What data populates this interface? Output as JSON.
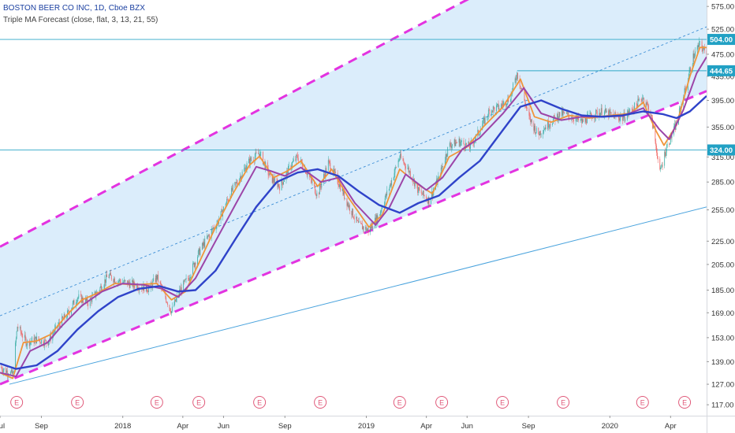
{
  "header": {
    "symbol_line": "BOSTON BEER CO INC, 1D, Cboe BZX",
    "study_line": "Triple MA Forecast (close, flat, 3, 13, 21, 55)"
  },
  "colors": {
    "background": "#ffffff",
    "channel_fill": "#d7ebfb",
    "channel_edge": "#e333e0",
    "midline": "#3c8ed6",
    "trendline": "#4aa3dd",
    "hline": "#2fa7c7",
    "ma_fast": "#f0953a",
    "ma_mid": "#9c45a8",
    "ma_slow": "#2f43c9",
    "candle_up": "#26a69a",
    "candle_down": "#ef5350",
    "event_marker": "#e05a7a",
    "axis_text": "#333333",
    "price_tag": "#22a1c4"
  },
  "chart_data": {
    "type": "line",
    "title": "BOSTON BEER CO INC, 1D, Cboe BZX",
    "subtitle": "Triple MA Forecast (close, flat, 3, 13, 21, 55)",
    "y_axis": {
      "scale": "log",
      "range": [
        112,
        590
      ],
      "ticks": [
        117.0,
        127.0,
        139.0,
        153.0,
        169.0,
        185.0,
        205.0,
        225.0,
        255.0,
        285.0,
        315.0,
        355.0,
        395.0,
        435.0,
        475.0,
        525.0,
        575.0
      ]
    },
    "x_axis": {
      "range": [
        "2017-07-01",
        "2020-05-25"
      ],
      "tick_labels": [
        {
          "date": "2017-07-01",
          "label": "Jul"
        },
        {
          "date": "2017-09-01",
          "label": "Sep"
        },
        {
          "date": "2018-01-01",
          "label": "2018"
        },
        {
          "date": "2018-04-01",
          "label": "Apr"
        },
        {
          "date": "2018-06-01",
          "label": "Jun"
        },
        {
          "date": "2018-09-01",
          "label": "Sep"
        },
        {
          "date": "2019-01-01",
          "label": "2019"
        },
        {
          "date": "2019-04-01",
          "label": "Apr"
        },
        {
          "date": "2019-06-01",
          "label": "Jun"
        },
        {
          "date": "2019-09-01",
          "label": "Sep"
        },
        {
          "date": "2020-01-01",
          "label": "2020"
        },
        {
          "date": "2020-04-01",
          "label": "Apr"
        }
      ]
    },
    "price_tags": [
      {
        "label": "504.00",
        "value": 504
      },
      {
        "label": "444.65",
        "value": 444.65
      },
      {
        "label": "324.00",
        "value": 324
      }
    ],
    "horizontal_lines": [
      504,
      324
    ],
    "partial_line": {
      "from": "2019-08-15",
      "to": "2020-05-25",
      "value": 444.65
    },
    "channel": {
      "upper": [
        {
          "x": "2017-07-01",
          "y": 220
        },
        {
          "x": "2020-05-25",
          "y": 980
        }
      ],
      "lower": [
        {
          "x": "2017-07-01",
          "y": 127
        },
        {
          "x": "2020-05-25",
          "y": 410
        }
      ],
      "mid": [
        {
          "x": "2017-07-01",
          "y": 167
        },
        {
          "x": "2020-05-25",
          "y": 530
        }
      ]
    },
    "trendline": [
      {
        "x": "2017-07-15",
        "y": 127
      },
      {
        "x": "2020-05-25",
        "y": 258
      }
    ],
    "event_markers": {
      "label": "E",
      "dates": [
        "2017-07-26",
        "2017-10-25",
        "2018-02-21",
        "2018-04-25",
        "2018-07-25",
        "2018-10-24",
        "2019-02-20",
        "2019-04-24",
        "2019-07-24",
        "2019-10-23",
        "2020-02-19",
        "2020-04-22"
      ]
    },
    "series": [
      {
        "key": "price",
        "points": [
          [
            "2017-07-01",
            136
          ],
          [
            "2017-07-20",
            132
          ],
          [
            "2017-07-27",
            160
          ],
          [
            "2017-08-10",
            150
          ],
          [
            "2017-08-25",
            152
          ],
          [
            "2017-09-10",
            150
          ],
          [
            "2017-09-25",
            160
          ],
          [
            "2017-10-10",
            168
          ],
          [
            "2017-10-25",
            180
          ],
          [
            "2017-11-10",
            176
          ],
          [
            "2017-11-25",
            184
          ],
          [
            "2017-12-10",
            196
          ],
          [
            "2017-12-25",
            192
          ],
          [
            "2018-01-10",
            190
          ],
          [
            "2018-01-25",
            188
          ],
          [
            "2018-02-10",
            186
          ],
          [
            "2018-02-21",
            195
          ],
          [
            "2018-03-01",
            185
          ],
          [
            "2018-03-15",
            170
          ],
          [
            "2018-03-28",
            185
          ],
          [
            "2018-04-10",
            195
          ],
          [
            "2018-04-25",
            215
          ],
          [
            "2018-05-10",
            230
          ],
          [
            "2018-05-25",
            245
          ],
          [
            "2018-06-10",
            270
          ],
          [
            "2018-06-25",
            290
          ],
          [
            "2018-07-10",
            310
          ],
          [
            "2018-07-25",
            320
          ],
          [
            "2018-08-10",
            290
          ],
          [
            "2018-08-25",
            280
          ],
          [
            "2018-09-10",
            305
          ],
          [
            "2018-09-20",
            315
          ],
          [
            "2018-10-05",
            295
          ],
          [
            "2018-10-20",
            270
          ],
          [
            "2018-11-05",
            308
          ],
          [
            "2018-11-20",
            285
          ],
          [
            "2018-12-05",
            260
          ],
          [
            "2018-12-20",
            240
          ],
          [
            "2019-01-05",
            235
          ],
          [
            "2019-01-20",
            250
          ],
          [
            "2019-02-05",
            280
          ],
          [
            "2019-02-20",
            315
          ],
          [
            "2019-03-05",
            300
          ],
          [
            "2019-03-20",
            275
          ],
          [
            "2019-04-05",
            265
          ],
          [
            "2019-04-20",
            290
          ],
          [
            "2019-05-05",
            330
          ],
          [
            "2019-05-20",
            335
          ],
          [
            "2019-06-05",
            328
          ],
          [
            "2019-06-20",
            350
          ],
          [
            "2019-07-05",
            380
          ],
          [
            "2019-07-20",
            385
          ],
          [
            "2019-08-05",
            400
          ],
          [
            "2019-08-15",
            440
          ],
          [
            "2019-09-01",
            370
          ],
          [
            "2019-09-15",
            345
          ],
          [
            "2019-10-01",
            360
          ],
          [
            "2019-10-20",
            375
          ],
          [
            "2019-11-05",
            370
          ],
          [
            "2019-11-20",
            362
          ],
          [
            "2019-12-05",
            372
          ],
          [
            "2019-12-20",
            378
          ],
          [
            "2020-01-05",
            372
          ],
          [
            "2020-01-20",
            368
          ],
          [
            "2020-02-05",
            382
          ],
          [
            "2020-02-19",
            400
          ],
          [
            "2020-03-01",
            380
          ],
          [
            "2020-03-10",
            330
          ],
          [
            "2020-03-16",
            295
          ],
          [
            "2020-03-25",
            325
          ],
          [
            "2020-04-10",
            360
          ],
          [
            "2020-04-25",
            420
          ],
          [
            "2020-05-05",
            470
          ],
          [
            "2020-05-15",
            495
          ],
          [
            "2020-05-22",
            480
          ]
        ]
      },
      {
        "key": "ma_fast",
        "points": [
          [
            "2017-07-01",
            133
          ],
          [
            "2017-07-20",
            130
          ],
          [
            "2017-08-05",
            150
          ],
          [
            "2017-08-25",
            151
          ],
          [
            "2017-09-15",
            155
          ],
          [
            "2017-10-10",
            168
          ],
          [
            "2017-11-01",
            178
          ],
          [
            "2017-11-25",
            183
          ],
          [
            "2017-12-20",
            190
          ],
          [
            "2018-01-20",
            189
          ],
          [
            "2018-02-21",
            190
          ],
          [
            "2018-03-15",
            178
          ],
          [
            "2018-04-05",
            184
          ],
          [
            "2018-04-25",
            206
          ],
          [
            "2018-05-20",
            238
          ],
          [
            "2018-06-15",
            272
          ],
          [
            "2018-07-10",
            305
          ],
          [
            "2018-07-25",
            316
          ],
          [
            "2018-08-15",
            290
          ],
          [
            "2018-09-05",
            298
          ],
          [
            "2018-09-25",
            310
          ],
          [
            "2018-10-20",
            280
          ],
          [
            "2018-11-10",
            300
          ],
          [
            "2018-12-05",
            268
          ],
          [
            "2019-01-05",
            238
          ],
          [
            "2019-01-25",
            250
          ],
          [
            "2019-02-20",
            300
          ],
          [
            "2019-03-20",
            282
          ],
          [
            "2019-04-10",
            272
          ],
          [
            "2019-05-05",
            315
          ],
          [
            "2019-06-01",
            328
          ],
          [
            "2019-06-25",
            355
          ],
          [
            "2019-07-25",
            385
          ],
          [
            "2019-08-20",
            430
          ],
          [
            "2019-09-10",
            370
          ],
          [
            "2019-10-05",
            362
          ],
          [
            "2019-11-01",
            372
          ],
          [
            "2019-12-01",
            368
          ],
          [
            "2020-01-01",
            372
          ],
          [
            "2020-02-01",
            375
          ],
          [
            "2020-02-20",
            392
          ],
          [
            "2020-03-10",
            350
          ],
          [
            "2020-03-22",
            330
          ],
          [
            "2020-04-10",
            358
          ],
          [
            "2020-04-30",
            435
          ],
          [
            "2020-05-15",
            488
          ],
          [
            "2020-05-25",
            488
          ]
        ]
      },
      {
        "key": "ma_mid",
        "points": [
          [
            "2017-07-01",
            133
          ],
          [
            "2017-07-25",
            131
          ],
          [
            "2017-08-15",
            145
          ],
          [
            "2017-09-10",
            150
          ],
          [
            "2017-10-01",
            160
          ],
          [
            "2017-11-01",
            174
          ],
          [
            "2017-12-01",
            184
          ],
          [
            "2018-01-01",
            190
          ],
          [
            "2018-02-01",
            189
          ],
          [
            "2018-03-01",
            186
          ],
          [
            "2018-03-25",
            180
          ],
          [
            "2018-04-20",
            194
          ],
          [
            "2018-05-20",
            225
          ],
          [
            "2018-06-20",
            262
          ],
          [
            "2018-07-20",
            303
          ],
          [
            "2018-08-10",
            298
          ],
          [
            "2018-09-01",
            292
          ],
          [
            "2018-09-25",
            302
          ],
          [
            "2018-10-25",
            285
          ],
          [
            "2018-11-20",
            290
          ],
          [
            "2018-12-15",
            262
          ],
          [
            "2019-01-15",
            240
          ],
          [
            "2019-02-05",
            258
          ],
          [
            "2019-03-01",
            294
          ],
          [
            "2019-04-01",
            276
          ],
          [
            "2019-04-25",
            290
          ],
          [
            "2019-05-25",
            325
          ],
          [
            "2019-06-20",
            340
          ],
          [
            "2019-07-25",
            375
          ],
          [
            "2019-08-25",
            415
          ],
          [
            "2019-09-20",
            375
          ],
          [
            "2019-10-20",
            365
          ],
          [
            "2019-11-20",
            370
          ],
          [
            "2019-12-20",
            370
          ],
          [
            "2020-01-20",
            371
          ],
          [
            "2020-02-20",
            383
          ],
          [
            "2020-03-15",
            352
          ],
          [
            "2020-03-30",
            338
          ],
          [
            "2020-04-20",
            380
          ],
          [
            "2020-05-10",
            440
          ],
          [
            "2020-05-25",
            470
          ]
        ]
      },
      {
        "key": "ma_slow",
        "points": [
          [
            "2017-07-01",
            138
          ],
          [
            "2017-07-25",
            135
          ],
          [
            "2017-08-25",
            137
          ],
          [
            "2017-09-25",
            145
          ],
          [
            "2017-10-25",
            158
          ],
          [
            "2017-11-25",
            170
          ],
          [
            "2017-12-25",
            180
          ],
          [
            "2018-01-25",
            186
          ],
          [
            "2018-02-25",
            188
          ],
          [
            "2018-03-25",
            184
          ],
          [
            "2018-04-20",
            185
          ],
          [
            "2018-05-20",
            200
          ],
          [
            "2018-06-20",
            228
          ],
          [
            "2018-07-20",
            258
          ],
          [
            "2018-08-20",
            285
          ],
          [
            "2018-09-20",
            296
          ],
          [
            "2018-10-20",
            300
          ],
          [
            "2018-11-20",
            292
          ],
          [
            "2018-12-20",
            275
          ],
          [
            "2019-01-20",
            260
          ],
          [
            "2019-02-20",
            252
          ],
          [
            "2019-03-20",
            262
          ],
          [
            "2019-04-20",
            270
          ],
          [
            "2019-05-20",
            290
          ],
          [
            "2019-06-20",
            310
          ],
          [
            "2019-07-20",
            345
          ],
          [
            "2019-08-20",
            385
          ],
          [
            "2019-09-20",
            395
          ],
          [
            "2019-10-20",
            382
          ],
          [
            "2019-11-20",
            372
          ],
          [
            "2019-12-20",
            370
          ],
          [
            "2020-01-20",
            372
          ],
          [
            "2020-02-20",
            378
          ],
          [
            "2020-03-20",
            374
          ],
          [
            "2020-04-10",
            368
          ],
          [
            "2020-04-30",
            378
          ],
          [
            "2020-05-25",
            402
          ]
        ]
      }
    ]
  }
}
